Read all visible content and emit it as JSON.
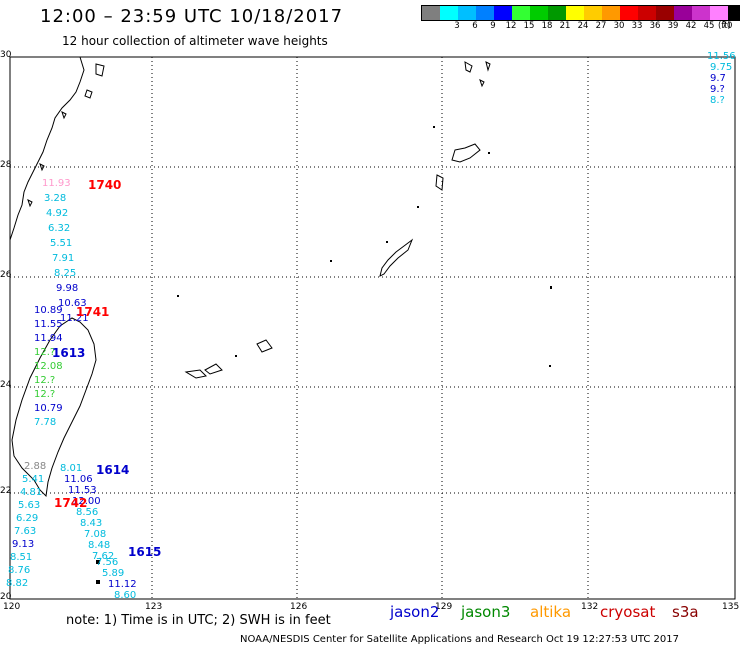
{
  "title": "12:00 – 23:59 UTC 10/18/2017",
  "subtitle": "12 hour collection of altimeter wave heights",
  "scale": {
    "unit": "(ft)",
    "stops": [
      {
        "label": "",
        "color": "#7f7f7f"
      },
      {
        "label": "3",
        "color": "#00ffff"
      },
      {
        "label": "6",
        "color": "#00bfff"
      },
      {
        "label": "9",
        "color": "#0080ff"
      },
      {
        "label": "12",
        "color": "#0000ff"
      },
      {
        "label": "15",
        "color": "#33ff33"
      },
      {
        "label": "18",
        "color": "#00cc00"
      },
      {
        "label": "21",
        "color": "#009900"
      },
      {
        "label": "24",
        "color": "#ffff00"
      },
      {
        "label": "27",
        "color": "#ffcc00"
      },
      {
        "label": "30",
        "color": "#ff9900"
      },
      {
        "label": "33",
        "color": "#ff0000"
      },
      {
        "label": "36",
        "color": "#cc0000"
      },
      {
        "label": "39",
        "color": "#990000"
      },
      {
        "label": "42",
        "color": "#990099"
      },
      {
        "label": "45",
        "color": "#cc33cc"
      },
      {
        "label": "70",
        "color": "#ff80ff"
      },
      {
        "label": "",
        "color": "#000000"
      }
    ]
  },
  "axes": {
    "lat_labels": [
      "30",
      "28",
      "26",
      "24",
      "22",
      "20"
    ],
    "lon_labels": [
      "120",
      "123",
      "126",
      "129",
      "132",
      "135"
    ]
  },
  "tracks": [
    {
      "time": "1740",
      "values": [
        "11.93",
        "3.28",
        "4.92",
        "6.32",
        "5.51",
        "7.91",
        "8.25",
        "9.98",
        "10.63",
        "11.21"
      ]
    },
    {
      "time": "1741",
      "values": [
        "10.89",
        "11.55",
        "11.94",
        "12.?",
        "12.08",
        "12.?",
        "12.?",
        "10.79",
        "7.78"
      ]
    },
    {
      "time": "1613",
      "values": []
    },
    {
      "time": "1614",
      "values": [
        "8.01",
        "11.06",
        "11.53",
        "12.00",
        "8.56",
        "8.43",
        "7.08",
        "8.48",
        "7.62"
      ]
    },
    {
      "time": "1615",
      "values": [
        "7.56",
        "5.89",
        "11.12",
        "8.60"
      ]
    },
    {
      "time": "1742",
      "values": [
        "2.88",
        "5.41",
        "4.81",
        "5.63",
        "6.29",
        "7.63",
        "9.13",
        "8.51",
        "8.76",
        "8.82"
      ]
    },
    {
      "time": "",
      "values": [
        "11.56",
        "9.75",
        "9.7",
        "9.?",
        "8.?"
      ]
    }
  ],
  "note": "note:  1) Time is in UTC;  2) SWH is in feet",
  "satellites": [
    {
      "name": "jason2",
      "color": "#0000cc"
    },
    {
      "name": "jason3",
      "color": "#008800"
    },
    {
      "name": "altika",
      "color": "#ff9900"
    },
    {
      "name": "cryosat",
      "color": "#cc0000"
    },
    {
      "name": "s3a",
      "color": "#880000"
    }
  ],
  "credit": "NOAA/NESDIS Center for Satellite Applications and Research    Oct 19 12:27:53 UTC 2017"
}
